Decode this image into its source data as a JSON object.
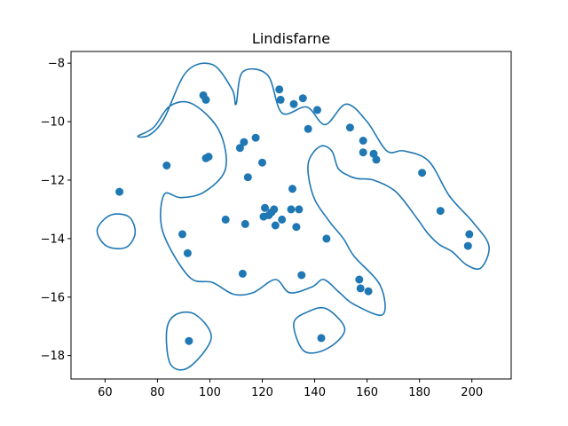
{
  "chart_data": {
    "type": "scatter",
    "title": "Lindisfarne",
    "xlabel": "",
    "ylabel": "",
    "xlim": [
      47,
      215
    ],
    "ylim": [
      -18.8,
      -7.6
    ],
    "xticks": [
      60,
      80,
      100,
      120,
      140,
      160,
      180,
      200
    ],
    "yticks": [
      -18,
      -16,
      -14,
      -12,
      -10,
      -8
    ],
    "grid": false,
    "color": "#1f77b4",
    "points": [
      [
        65.5,
        -12.4
      ],
      [
        83.5,
        -11.5
      ],
      [
        89.5,
        -13.85
      ],
      [
        91.5,
        -14.5
      ],
      [
        92.0,
        -17.5
      ],
      [
        97.5,
        -9.1
      ],
      [
        98.5,
        -9.25
      ],
      [
        98.5,
        -11.25
      ],
      [
        99.5,
        -11.2
      ],
      [
        106.0,
        -13.35
      ],
      [
        111.5,
        -10.9
      ],
      [
        112.5,
        -15.2
      ],
      [
        113.0,
        -10.7
      ],
      [
        113.5,
        -13.5
      ],
      [
        114.5,
        -11.9
      ],
      [
        117.5,
        -10.55
      ],
      [
        120.0,
        -11.4
      ],
      [
        120.5,
        -13.25
      ],
      [
        121.0,
        -12.95
      ],
      [
        122.5,
        -13.2
      ],
      [
        123.5,
        -13.1
      ],
      [
        124.5,
        -13.0
      ],
      [
        125.0,
        -13.55
      ],
      [
        126.5,
        -8.9
      ],
      [
        127.0,
        -9.25
      ],
      [
        127.5,
        -13.35
      ],
      [
        131.0,
        -13.0
      ],
      [
        131.5,
        -12.3
      ],
      [
        132.0,
        -9.4
      ],
      [
        133.0,
        -13.6
      ],
      [
        134.0,
        -13.0
      ],
      [
        135.0,
        -15.25
      ],
      [
        135.5,
        -9.2
      ],
      [
        137.5,
        -10.25
      ],
      [
        141.0,
        -9.6
      ],
      [
        142.5,
        -17.4
      ],
      [
        144.5,
        -14.0
      ],
      [
        153.5,
        -10.2
      ],
      [
        157.0,
        -15.4
      ],
      [
        157.5,
        -15.7
      ],
      [
        158.5,
        -10.65
      ],
      [
        158.5,
        -11.05
      ],
      [
        160.5,
        -15.8
      ],
      [
        162.5,
        -11.1
      ],
      [
        163.5,
        -11.3
      ],
      [
        181.0,
        -11.75
      ],
      [
        188.0,
        -13.05
      ],
      [
        198.5,
        -14.25
      ],
      [
        199.0,
        -13.85
      ]
    ],
    "contours": [
      [
        [
          72.5,
          -10.5
        ],
        [
          77,
          -10.45
        ],
        [
          82.5,
          -9.9
        ],
        [
          91,
          -8.3
        ],
        [
          101,
          -8.05
        ],
        [
          108.5,
          -8.9
        ],
        [
          110,
          -9.4
        ],
        [
          112.5,
          -8.3
        ],
        [
          122,
          -8.4
        ],
        [
          127.5,
          -9.7
        ],
        [
          137,
          -9.5
        ],
        [
          144,
          -10.1
        ],
        [
          152,
          -9.4
        ],
        [
          160,
          -10.0
        ],
        [
          167.5,
          -11.0
        ],
        [
          174,
          -11.0
        ],
        [
          183.5,
          -11.35
        ],
        [
          191.5,
          -12.55
        ],
        [
          200.5,
          -13.45
        ],
        [
          206.5,
          -14.25
        ],
        [
          203.5,
          -15.0
        ],
        [
          198,
          -14.9
        ],
        [
          192.5,
          -14.45
        ],
        [
          187.5,
          -14.2
        ],
        [
          183,
          -13.8
        ],
        [
          179,
          -13.3
        ],
        [
          171,
          -12.4
        ],
        [
          162.5,
          -12.0
        ],
        [
          156.5,
          -11.95
        ],
        [
          153,
          -11.85
        ],
        [
          149,
          -11.6
        ],
        [
          146.5,
          -11.0
        ],
        [
          142,
          -10.85
        ],
        [
          137.5,
          -11.45
        ],
        [
          139.5,
          -12.55
        ],
        [
          145.5,
          -13.4
        ],
        [
          151,
          -14.0
        ],
        [
          155,
          -14.6
        ],
        [
          165,
          -15.6
        ],
        [
          166,
          -16.6
        ],
        [
          155,
          -16.25
        ],
        [
          149.5,
          -15.85
        ],
        [
          143.5,
          -15.4
        ],
        [
          139,
          -15.65
        ],
        [
          130.5,
          -15.85
        ],
        [
          125,
          -15.4
        ],
        [
          116.5,
          -15.85
        ],
        [
          109,
          -15.9
        ],
        [
          101,
          -15.5
        ],
        [
          92,
          -15.3
        ],
        [
          82,
          -13.75
        ],
        [
          82.5,
          -12.5
        ],
        [
          89,
          -12.6
        ],
        [
          98,
          -12.4
        ],
        [
          106,
          -11.6
        ],
        [
          103.5,
          -10.3
        ],
        [
          93.5,
          -9.4
        ],
        [
          85,
          -9.45
        ],
        [
          78.5,
          -10.2
        ]
      ],
      [
        [
          57,
          -13.7
        ],
        [
          60.5,
          -14.25
        ],
        [
          68,
          -14.3
        ],
        [
          71.5,
          -13.8
        ],
        [
          69,
          -13.25
        ],
        [
          62,
          -13.2
        ]
      ],
      [
        [
          83.5,
          -17.15
        ],
        [
          85,
          -18.3
        ],
        [
          92,
          -18.4
        ],
        [
          100.5,
          -17.4
        ],
        [
          94.5,
          -16.6
        ],
        [
          87,
          -16.6
        ]
      ],
      [
        [
          132,
          -16.9
        ],
        [
          136,
          -17.85
        ],
        [
          145,
          -17.75
        ],
        [
          151.5,
          -17.1
        ],
        [
          144.5,
          -16.4
        ],
        [
          137.5,
          -16.5
        ]
      ]
    ]
  }
}
